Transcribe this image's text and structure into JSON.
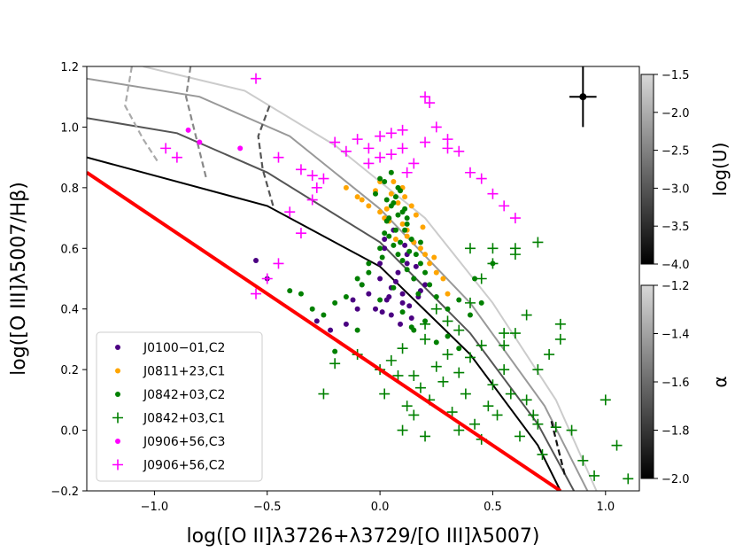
{
  "chart_data": {
    "type": "scatter",
    "title": "",
    "xlabel": "log([O II]λ3726+λ3729/[O III]λ5007)",
    "ylabel": "log([O III]λ5007/Hβ)",
    "xlim": [
      -1.3,
      1.15
    ],
    "ylim": [
      -0.2,
      1.2
    ],
    "xticks": [
      -1.0,
      -0.5,
      0.0,
      0.5,
      1.0
    ],
    "xtick_labels": [
      "−1.0",
      "−0.5",
      "0.0",
      "0.5",
      "1.0"
    ],
    "yticks": [
      -0.2,
      0.0,
      0.2,
      0.4,
      0.6,
      0.8,
      1.0,
      1.2
    ],
    "ytick_labels": [
      "−0.2",
      "0.0",
      "0.2",
      "0.4",
      "0.6",
      "0.8",
      "1.0",
      "1.2"
    ],
    "grid": false,
    "legend_position": "bottom-left",
    "error_bar": {
      "x": 0.9,
      "y": 1.1,
      "xerr": 0.06,
      "yerr": 0.1
    },
    "colorbars": [
      {
        "label": "log(U)",
        "range": [
          -4.0,
          -1.5
        ],
        "ticks": [
          -4.0,
          -3.5,
          -3.0,
          -2.5,
          -2.0,
          -1.5
        ],
        "tick_labels": [
          "−4.0",
          "−3.5",
          "−3.0",
          "−2.5",
          "−2.0",
          "−1.5"
        ]
      },
      {
        "label": "α",
        "range": [
          -2.0,
          -1.2
        ],
        "ticks": [
          -2.0,
          -1.8,
          -1.6,
          -1.4,
          -1.2
        ],
        "tick_labels": [
          "−2.0",
          "−1.8",
          "−1.6",
          "−1.4",
          "−1.2"
        ]
      }
    ],
    "reference_line": {
      "name": "red boundary",
      "color": "#ff0000",
      "x": [
        -1.3,
        0.8
      ],
      "y": [
        0.85,
        -0.2
      ]
    },
    "model_grid_lines": [
      {
        "logU": -3.5,
        "x": [
          -1.3,
          -0.5,
          0.0,
          0.4,
          0.7,
          0.8
        ],
        "y": [
          0.9,
          0.74,
          0.54,
          0.25,
          -0.05,
          -0.2
        ]
      },
      {
        "logU": -3.0,
        "x": [
          -1.3,
          -0.9,
          -0.5,
          0.0,
          0.4,
          0.7,
          0.86
        ],
        "y": [
          1.03,
          0.98,
          0.85,
          0.62,
          0.32,
          0.02,
          -0.2
        ]
      },
      {
        "logU": -2.5,
        "x": [
          -1.3,
          -0.8,
          -0.4,
          0.0,
          0.4,
          0.73,
          0.92
        ],
        "y": [
          1.16,
          1.1,
          0.97,
          0.73,
          0.42,
          0.08,
          -0.2
        ]
      },
      {
        "logU": -2.0,
        "x": [
          -1.05,
          -0.6,
          -0.2,
          0.2,
          0.5,
          0.78,
          0.96
        ],
        "y": [
          1.2,
          1.12,
          0.94,
          0.7,
          0.42,
          0.1,
          -0.2
        ]
      }
    ],
    "model_alpha_lines": [
      {
        "alpha": -1.2,
        "x": [
          -1.1,
          -1.13,
          -1.05,
          -0.98
        ],
        "y": [
          1.2,
          1.07,
          0.96,
          0.88
        ]
      },
      {
        "alpha": -1.6,
        "x": [
          -0.84,
          -0.86,
          -0.82,
          -0.77
        ],
        "y": [
          1.2,
          1.1,
          0.98,
          0.83
        ]
      },
      {
        "alpha": -1.8,
        "x": [
          -0.49,
          -0.54,
          -0.52,
          -0.47
        ],
        "y": [
          1.07,
          0.97,
          0.86,
          0.73
        ]
      },
      {
        "alpha": -2.0,
        "x": [
          0.76,
          0.79,
          0.82
        ],
        "y": [
          0.03,
          -0.06,
          -0.15
        ]
      }
    ],
    "series": [
      {
        "name": "J0100−01,C2",
        "color": "#4b0082",
        "marker": "dot",
        "x": [
          -0.55,
          -0.5,
          -0.28,
          -0.22,
          -0.15,
          -0.1,
          -0.05,
          0.0,
          0.0,
          0.02,
          0.03,
          0.05,
          0.08,
          0.1,
          0.12,
          0.15,
          0.18,
          -0.02,
          0.05,
          0.1,
          0.12,
          0.15,
          0.2,
          0.06,
          0.09,
          0.13,
          0.02,
          0.04,
          0.07,
          0.16,
          -0.08,
          0.01,
          0.11,
          0.17,
          -0.12,
          0.14
        ],
        "y": [
          0.56,
          0.5,
          0.36,
          0.33,
          0.35,
          0.4,
          0.45,
          0.5,
          0.55,
          0.6,
          0.43,
          0.47,
          0.52,
          0.45,
          0.58,
          0.5,
          0.46,
          0.4,
          0.38,
          0.42,
          0.55,
          0.62,
          0.48,
          0.66,
          0.35,
          0.41,
          0.63,
          0.44,
          0.49,
          0.54,
          0.48,
          0.39,
          0.61,
          0.44,
          0.43,
          0.37
        ]
      },
      {
        "name": "J0811+23,C1",
        "color": "#ffa500",
        "marker": "dot",
        "x": [
          -0.15,
          -0.1,
          -0.05,
          0.0,
          0.02,
          0.05,
          0.1,
          0.12,
          0.15,
          0.18,
          0.2,
          0.22,
          0.25,
          0.1,
          0.08,
          0.03,
          -0.02,
          0.3,
          0.06,
          0.12,
          0.24,
          0.16,
          -0.08,
          0.0,
          0.04,
          0.14,
          0.19,
          0.28,
          0.07,
          0.11
        ],
        "y": [
          0.8,
          0.77,
          0.74,
          0.72,
          0.7,
          0.78,
          0.68,
          0.64,
          0.62,
          0.6,
          0.58,
          0.55,
          0.52,
          0.8,
          0.75,
          0.73,
          0.79,
          0.45,
          0.82,
          0.66,
          0.57,
          0.71,
          0.76,
          0.82,
          0.69,
          0.74,
          0.67,
          0.5,
          0.63,
          0.77
        ]
      },
      {
        "name": "J0842+03,C2",
        "color": "#008000",
        "marker": "dot",
        "x": [
          -0.4,
          -0.35,
          -0.3,
          -0.25,
          -0.2,
          -0.15,
          -0.1,
          -0.05,
          0.0,
          0.02,
          0.04,
          0.06,
          0.08,
          0.1,
          0.12,
          0.14,
          0.16,
          0.18,
          0.2,
          0.22,
          0.25,
          0.3,
          0.35,
          0.4,
          0.45,
          0.5,
          -0.02,
          0.0,
          0.03,
          0.05,
          0.07,
          0.09,
          0.11,
          0.13,
          0.15,
          0.01,
          0.04,
          0.06,
          0.08,
          0.1,
          0.12,
          0.02,
          0.05,
          0.07,
          0.09,
          0.11,
          -0.05,
          -0.08,
          0.2,
          0.3,
          0.15,
          0.25,
          0.35,
          0.42,
          -0.1,
          -0.2,
          0.0,
          0.06,
          0.1,
          0.14,
          0.18,
          0.03,
          0.08,
          0.12,
          0.17
        ],
        "y": [
          0.46,
          0.45,
          0.4,
          0.38,
          0.42,
          0.44,
          0.5,
          0.55,
          0.6,
          0.65,
          0.7,
          0.75,
          0.8,
          0.72,
          0.68,
          0.63,
          0.58,
          0.55,
          0.52,
          0.48,
          0.44,
          0.4,
          0.43,
          0.38,
          0.42,
          0.55,
          0.78,
          0.83,
          0.69,
          0.74,
          0.77,
          0.62,
          0.66,
          0.59,
          0.5,
          0.57,
          0.64,
          0.61,
          0.71,
          0.56,
          0.53,
          0.82,
          0.85,
          0.66,
          0.79,
          0.73,
          0.52,
          0.48,
          0.36,
          0.31,
          0.33,
          0.29,
          0.27,
          0.5,
          0.33,
          0.26,
          0.43,
          0.47,
          0.39,
          0.34,
          0.62,
          0.76,
          0.58,
          0.7,
          0.45
        ]
      },
      {
        "name": "J0842+03,C1",
        "color": "#008000",
        "marker": "plus",
        "x": [
          -0.2,
          -0.1,
          0.0,
          0.05,
          0.1,
          0.15,
          0.2,
          0.25,
          0.3,
          0.35,
          0.4,
          0.45,
          0.5,
          0.55,
          0.6,
          0.65,
          0.7,
          0.75,
          0.8,
          0.85,
          0.9,
          0.95,
          1.0,
          1.05,
          1.1,
          0.02,
          0.08,
          0.12,
          0.18,
          0.22,
          0.28,
          0.32,
          0.38,
          0.42,
          0.48,
          0.52,
          0.58,
          0.62,
          0.68,
          0.72,
          0.78,
          0.3,
          0.4,
          0.5,
          0.6,
          0.7,
          0.2,
          0.25,
          0.35,
          0.45,
          0.55,
          0.65,
          0.15,
          0.35,
          0.45,
          0.55,
          0.4,
          0.5,
          0.6,
          0.7,
          0.8,
          -0.25,
          0.1,
          0.2
        ],
        "y": [
          0.22,
          0.25,
          0.2,
          0.23,
          0.27,
          0.18,
          0.3,
          0.21,
          0.25,
          0.19,
          0.24,
          0.28,
          0.15,
          0.2,
          0.32,
          0.1,
          0.2,
          0.25,
          0.3,
          0.0,
          -0.1,
          -0.15,
          0.1,
          -0.05,
          -0.16,
          0.12,
          0.18,
          0.08,
          0.14,
          0.1,
          0.16,
          0.06,
          0.12,
          0.02,
          0.08,
          0.05,
          0.12,
          -0.02,
          0.05,
          -0.08,
          0.01,
          0.36,
          0.42,
          0.55,
          0.6,
          0.62,
          0.35,
          0.4,
          0.33,
          0.5,
          0.28,
          0.38,
          0.05,
          0.0,
          -0.03,
          0.32,
          0.6,
          0.6,
          0.58,
          0.02,
          0.35,
          0.12,
          0.0,
          -0.02
        ]
      },
      {
        "name": "J0906+56,C3",
        "color": "#ff00ff",
        "marker": "dot",
        "x": [
          -0.85,
          -0.8,
          -0.62
        ],
        "y": [
          0.99,
          0.95,
          0.93
        ]
      },
      {
        "name": "J0906+56,C2",
        "color": "#ff00ff",
        "marker": "plus",
        "x": [
          -0.55,
          -0.95,
          -0.9,
          -0.45,
          -0.35,
          -0.3,
          -0.25,
          -0.2,
          -0.15,
          -0.1,
          -0.05,
          0.0,
          0.05,
          0.1,
          0.15,
          0.2,
          0.25,
          0.3,
          0.35,
          0.4,
          0.45,
          0.5,
          0.55,
          0.6,
          -0.4,
          -0.45,
          -0.5,
          -0.55,
          -0.35,
          -0.3,
          -0.28,
          0.2,
          0.22,
          0.1,
          0.05,
          0.3,
          -0.05,
          0.0,
          0.12
        ],
        "y": [
          1.16,
          0.93,
          0.9,
          0.9,
          0.86,
          0.84,
          0.83,
          0.95,
          0.92,
          0.96,
          0.93,
          0.97,
          0.98,
          0.93,
          0.88,
          0.95,
          1.0,
          0.93,
          0.92,
          0.85,
          0.83,
          0.78,
          0.74,
          0.7,
          0.72,
          0.55,
          0.5,
          0.45,
          0.65,
          0.76,
          0.8,
          1.1,
          1.08,
          0.99,
          0.91,
          0.96,
          0.88,
          0.9,
          0.85
        ]
      }
    ]
  }
}
